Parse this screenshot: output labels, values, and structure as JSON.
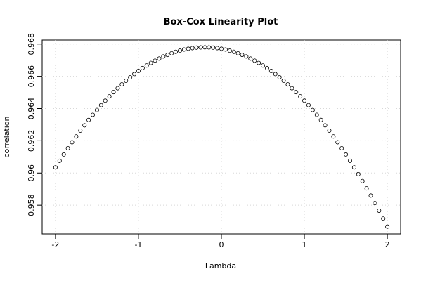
{
  "chart_data": {
    "type": "scatter",
    "title": "Box-Cox Linearity Plot",
    "x_label": "Lambda",
    "y_label": "correlation",
    "x": [
      -2,
      -1.95,
      -1.9,
      -1.85,
      -1.8,
      -1.75,
      -1.7,
      -1.65,
      -1.6,
      -1.55,
      -1.5,
      -1.45,
      -1.4,
      -1.35,
      -1.3,
      -1.25,
      -1.2,
      -1.15,
      -1.1,
      -1.05,
      -1,
      -0.95,
      -0.9,
      -0.85,
      -0.8,
      -0.75,
      -0.7,
      -0.65,
      -0.6,
      -0.55,
      -0.5,
      -0.45,
      -0.4,
      -0.35,
      -0.3,
      -0.25,
      -0.2,
      -0.15,
      -0.1,
      -0.05,
      0,
      0.05,
      0.1,
      0.15,
      0.2,
      0.25,
      0.3,
      0.35,
      0.4,
      0.45,
      0.5,
      0.55,
      0.6,
      0.65,
      0.7,
      0.75,
      0.8,
      0.85,
      0.9,
      0.95,
      1,
      1.05,
      1.1,
      1.15,
      1.2,
      1.25,
      1.3,
      1.35,
      1.4,
      1.45,
      1.5,
      1.55,
      1.6,
      1.65,
      1.7,
      1.75,
      1.8,
      1.85,
      1.9,
      1.95,
      2
    ],
    "values": [
      0.96035,
      0.96076,
      0.96115,
      0.96154,
      0.96191,
      0.96227,
      0.96263,
      0.96296,
      0.96329,
      0.96361,
      0.96391,
      0.96421,
      0.96449,
      0.96476,
      0.96502,
      0.96526,
      0.9655,
      0.96572,
      0.96594,
      0.96614,
      0.96633,
      0.96651,
      0.96667,
      0.96683,
      0.96697,
      0.9671,
      0.96723,
      0.96733,
      0.96743,
      0.96752,
      0.96759,
      0.96766,
      0.96771,
      0.96775,
      0.96778,
      0.96779,
      0.9678,
      0.96779,
      0.96778,
      0.96775,
      0.96771,
      0.96766,
      0.96759,
      0.96752,
      0.96743,
      0.96733,
      0.96723,
      0.9671,
      0.96697,
      0.96683,
      0.96667,
      0.96651,
      0.96633,
      0.96614,
      0.96594,
      0.96572,
      0.9655,
      0.96526,
      0.96502,
      0.96476,
      0.96449,
      0.96421,
      0.96391,
      0.96361,
      0.96329,
      0.96296,
      0.96263,
      0.96227,
      0.96191,
      0.96154,
      0.96115,
      0.96076,
      0.96035,
      0.95993,
      0.9595,
      0.95905,
      0.9586,
      0.95813,
      0.95766,
      0.95717,
      0.95667
    ],
    "color": "#000000",
    "xlim": [
      -2.16,
      2.16
    ],
    "xticks": [
      -2,
      -1,
      0,
      1,
      2
    ],
    "ylim": [
      0.95622,
      0.96825
    ],
    "yticks": [
      0.958,
      0.96,
      0.962,
      0.964,
      0.966,
      0.968
    ],
    "grid": true
  }
}
